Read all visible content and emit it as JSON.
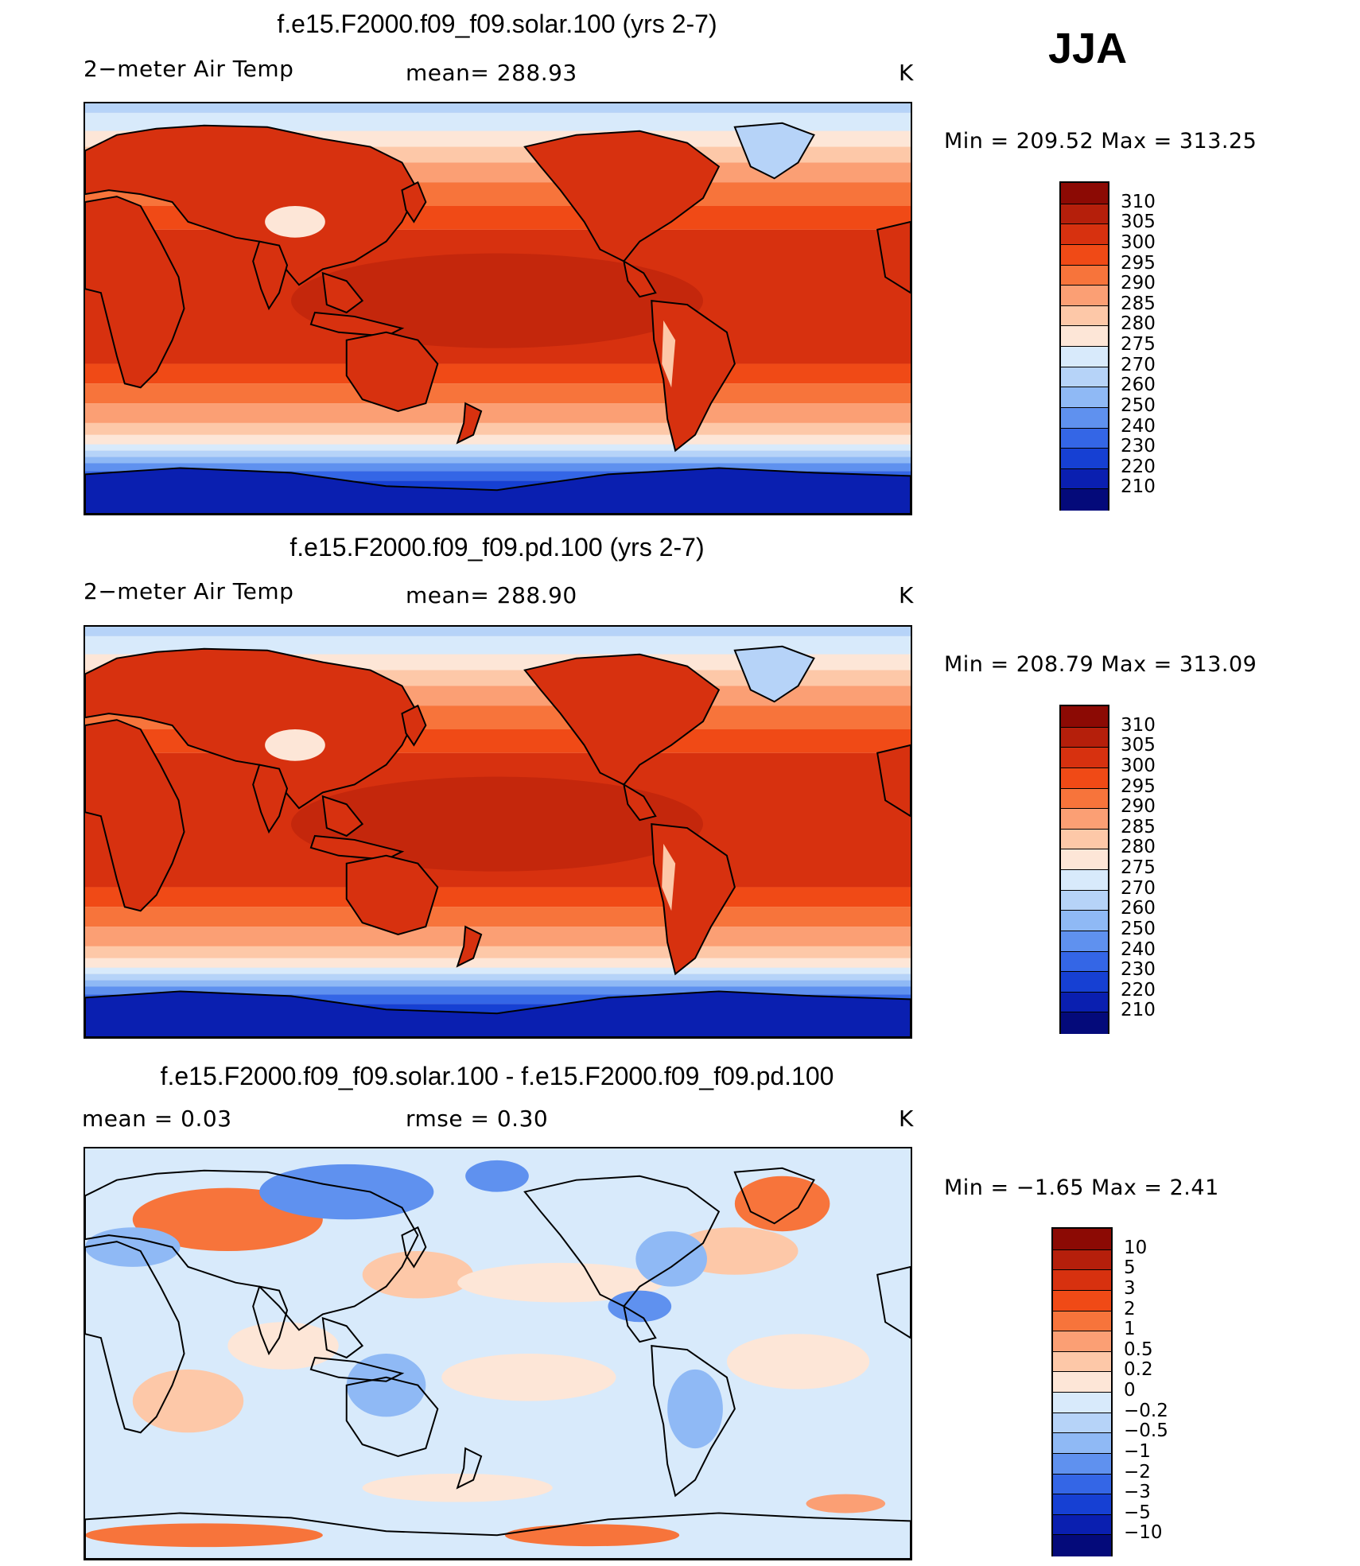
{
  "season": "JJA",
  "panels": [
    {
      "id": "solar",
      "title": "f.e15.F2000.f09_f09.solar.100 (yrs 2-7)",
      "left_text": "2−meter Air Temp",
      "mid_text": "mean=  288.93",
      "unit": "K",
      "minmax": "Min  =  209.52  Max  =  313.25",
      "field": "abs"
    },
    {
      "id": "pd",
      "title": "f.e15.F2000.f09_f09.pd.100 (yrs 2-7)",
      "left_text": "2−meter Air Temp",
      "mid_text": "mean=  288.90",
      "unit": "K",
      "minmax": "Min  =  208.79  Max  =  313.09",
      "field": "abs"
    },
    {
      "id": "diff",
      "title": "f.e15.F2000.f09_f09.solar.100 - f.e15.F2000.f09_f09.pd.100",
      "left_text": "mean  =      0.03",
      "mid_text": "rmse  =      0.30",
      "unit": "K",
      "minmax": "Min  =    −1.65  Max  =       2.41",
      "field": "diff"
    }
  ],
  "chart_data": [
    {
      "type": "heatmap",
      "title": "f.e15.F2000.f09_f09.solar.100 (yrs 2-7)",
      "variable": "2-meter Air Temp",
      "units": "K",
      "mean": 288.93,
      "min": 209.52,
      "max": 313.25,
      "levels": [
        210,
        220,
        230,
        240,
        250,
        260,
        270,
        275,
        280,
        285,
        290,
        295,
        300,
        305,
        310
      ]
    },
    {
      "type": "heatmap",
      "title": "f.e15.F2000.f09_f09.pd.100 (yrs 2-7)",
      "variable": "2-meter Air Temp",
      "units": "K",
      "mean": 288.9,
      "min": 208.79,
      "max": 313.09,
      "levels": [
        210,
        220,
        230,
        240,
        250,
        260,
        270,
        275,
        280,
        285,
        290,
        295,
        300,
        305,
        310
      ]
    },
    {
      "type": "heatmap",
      "title": "f.e15.F2000.f09_f09.solar.100 - f.e15.F2000.f09_f09.pd.100",
      "variable": "difference",
      "units": "K",
      "mean": 0.03,
      "rmse": 0.3,
      "min": -1.65,
      "max": 2.41,
      "levels": [
        -10,
        -5,
        -3,
        -2,
        -1,
        -0.5,
        -0.2,
        0,
        0.2,
        0.5,
        1,
        2,
        3,
        5,
        10
      ]
    }
  ],
  "colorbars": {
    "abs": {
      "labels": [
        "310",
        "305",
        "300",
        "295",
        "290",
        "285",
        "280",
        "275",
        "270",
        "260",
        "250",
        "240",
        "230",
        "220",
        "210"
      ],
      "colors": [
        "#8c0a04",
        "#b51f0b",
        "#d7310f",
        "#f04a16",
        "#f7743b",
        "#fb9f74",
        "#fdc8a8",
        "#fde6d7",
        "#d8eafb",
        "#b6d3f8",
        "#8fb9f5",
        "#5f91ef",
        "#3466e6",
        "#1640d3",
        "#0a1fb0",
        "#040a7a"
      ]
    },
    "diff": {
      "labels": [
        "10",
        "5",
        "3",
        "2",
        "1",
        "0.5",
        "0.2",
        "0",
        "−0.2",
        "−0.5",
        "−1",
        "−2",
        "−3",
        "−5",
        "−10"
      ],
      "colors": [
        "#8c0a04",
        "#b51f0b",
        "#d7310f",
        "#f04a16",
        "#f7743b",
        "#fb9f74",
        "#fdc8a8",
        "#fde6d7",
        "#d8eafb",
        "#b6d3f8",
        "#8fb9f5",
        "#5f91ef",
        "#3466e6",
        "#1640d3",
        "#0a1fb0",
        "#040a7a"
      ]
    }
  }
}
